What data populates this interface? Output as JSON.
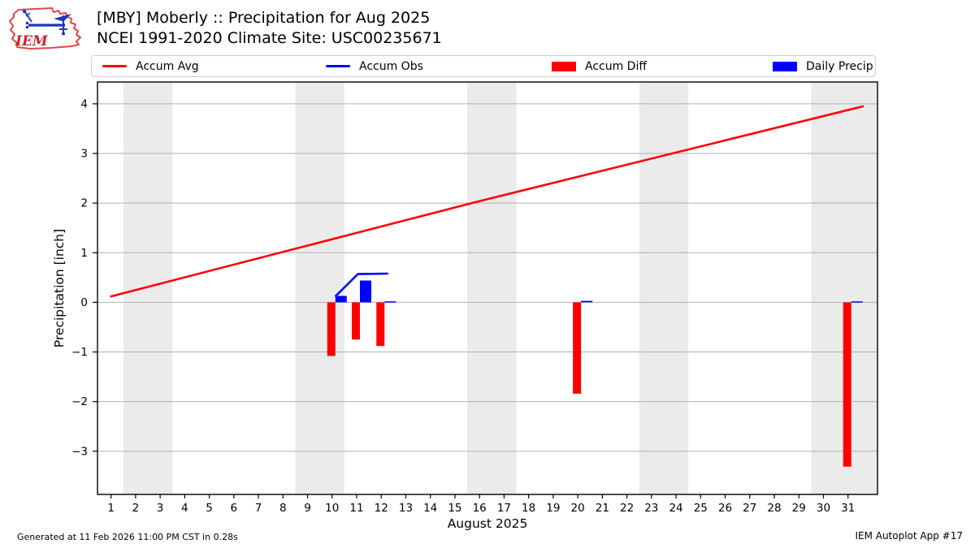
{
  "header": {
    "logo_text": "IEM",
    "title_line1": "[MBY] Moberly :: Precipitation for Aug 2025",
    "title_line2": "NCEI 1991-2020 Climate Site: USC00235671"
  },
  "legend": {
    "items": [
      {
        "label": "Accum Avg",
        "swatch": "line",
        "color": "#ff0000"
      },
      {
        "label": "Accum Obs",
        "swatch": "line",
        "color": "#0000ff"
      },
      {
        "label": "Accum Diff",
        "swatch": "rect",
        "color": "#ff0000"
      },
      {
        "label": "Daily Precip",
        "swatch": "rect",
        "color": "#0000ff"
      }
    ]
  },
  "footer": {
    "generated": "Generated at 11 Feb 2026 11:00 PM CST in 0.28s",
    "app": "IEM Autoplot App #17"
  },
  "chart_data": {
    "type": "line+bar",
    "title": "[MBY] Moberly :: Precipitation for Aug 2025 — NCEI 1991-2020 Climate Site: USC00235671",
    "xlabel": "August 2025",
    "ylabel": "Precipitation [inch]",
    "xlim": [
      0.45,
      32.2
    ],
    "ylim": [
      -3.87,
      4.44
    ],
    "xticks": [
      1,
      2,
      3,
      4,
      5,
      6,
      7,
      8,
      9,
      10,
      11,
      12,
      13,
      14,
      15,
      16,
      17,
      18,
      19,
      20,
      21,
      22,
      23,
      24,
      25,
      26,
      27,
      28,
      29,
      30,
      31
    ],
    "yticks": [
      -3,
      -2,
      -1,
      0,
      1,
      2,
      3,
      4
    ],
    "grid": true,
    "weekend_bands": [
      [
        1.5,
        3.5
      ],
      [
        8.5,
        10.5
      ],
      [
        15.5,
        17.5
      ],
      [
        22.5,
        24.5
      ],
      [
        29.5,
        32.2
      ]
    ],
    "band_color": "#ebebeb",
    "grid_color": "#b0b0b0",
    "series": [
      {
        "name": "Accum Avg",
        "type": "line",
        "color": "#ff0000",
        "points": [
          [
            1,
            0.12
          ],
          [
            16,
            2.04
          ],
          [
            31.6,
            3.95
          ]
        ]
      },
      {
        "name": "Accum Obs",
        "type": "line",
        "color": "#0000ff",
        "points": [
          [
            10.15,
            0.13
          ],
          [
            11.05,
            0.57
          ],
          [
            12.25,
            0.58
          ]
        ]
      },
      {
        "name": "Accum Diff",
        "type": "bar",
        "color": "#ff0000",
        "points": [
          [
            10,
            -1.08
          ],
          [
            11,
            -0.75
          ],
          [
            12,
            -0.88
          ],
          [
            20,
            -1.84
          ],
          [
            31,
            -3.31
          ]
        ]
      },
      {
        "name": "Daily Precip",
        "type": "bar",
        "color": "#0000ff",
        "points": [
          [
            10,
            0.13
          ],
          [
            11,
            0.44
          ],
          [
            12,
            0.02
          ],
          [
            20,
            0.03
          ],
          [
            31,
            0.02
          ]
        ]
      }
    ],
    "legend_position": "top"
  }
}
